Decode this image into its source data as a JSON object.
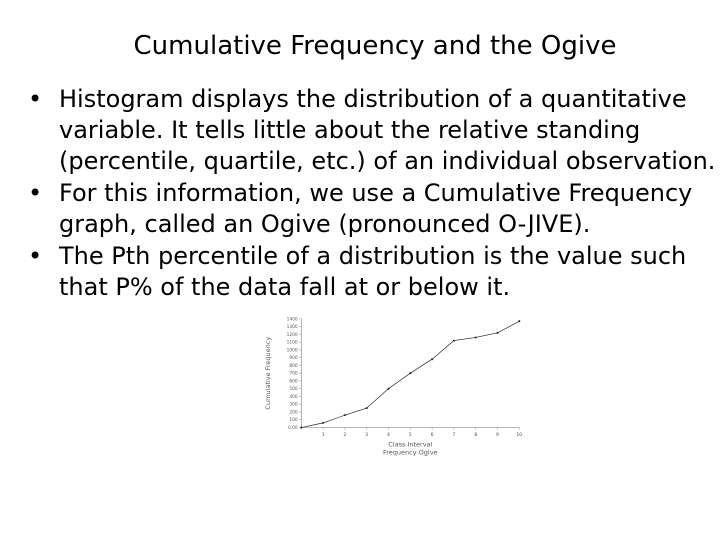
{
  "slide": {
    "title": "Cumulative Frequency and the Ogive",
    "bullets": [
      "Histogram displays the distribution of a quantitative variable. It tells little about the relative standing (percentile, quartile, etc.) of an individual observation.",
      "For this information, we use a Cumulative Frequency graph, called an Ogive (pronounced O-JIVE).",
      "The Pth percentile of a distribution is the value such that P% of the data fall at or below it."
    ]
  },
  "chart_data": {
    "type": "line",
    "xlabel": "Class Interval",
    "subtitle": "Frequency Ogive",
    "ylabel": "Cumulative Frequency",
    "x": [
      0,
      1,
      2,
      3,
      4,
      5,
      6,
      7,
      8,
      9,
      10
    ],
    "x_tick_labels": [
      "",
      "1",
      "2",
      "3",
      "4",
      "5",
      "6",
      "7",
      "8",
      "9",
      "10"
    ],
    "values": [
      0,
      60,
      160,
      250,
      500,
      700,
      880,
      1120,
      1160,
      1220,
      1370
    ],
    "ylim": [
      0,
      1400
    ],
    "y_ticks": [
      0,
      100,
      200,
      300,
      400,
      500,
      600,
      700,
      800,
      900,
      1000,
      1100,
      1200,
      1300,
      1400
    ],
    "y_tick_labels": [
      "0.00",
      "100",
      "200",
      "300",
      "400",
      "500",
      "600",
      "700",
      "800",
      "900",
      "1000",
      "1100",
      "1200",
      "1300",
      "1400"
    ],
    "grid": false,
    "line_color": "#222222"
  }
}
